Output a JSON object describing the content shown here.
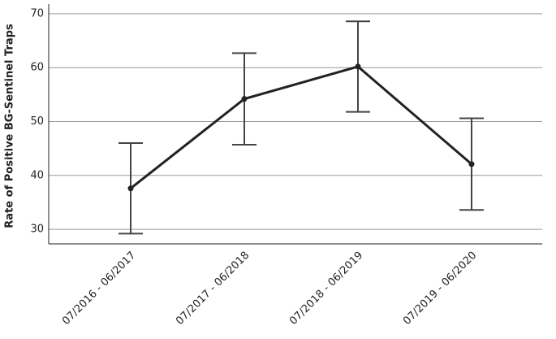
{
  "chart_data": {
    "type": "line",
    "y_label": "Rate of Positive BG-Sentinel Traps",
    "categories": [
      "07/2016 - 06/2017",
      "07/2017 - 06/2018",
      "07/2018 - 06/2019",
      "07/2019 - 06/2020"
    ],
    "series": [
      {
        "color": "#222222",
        "values": [
          37.6,
          54.2,
          60.2,
          42.1
        ],
        "errors": [
          8.4,
          8.5,
          8.4,
          8.5
        ]
      }
    ],
    "ylim": [
      27.3,
      71.8
    ],
    "yticks": [
      30,
      40,
      50,
      60,
      70
    ],
    "grid": true
  }
}
